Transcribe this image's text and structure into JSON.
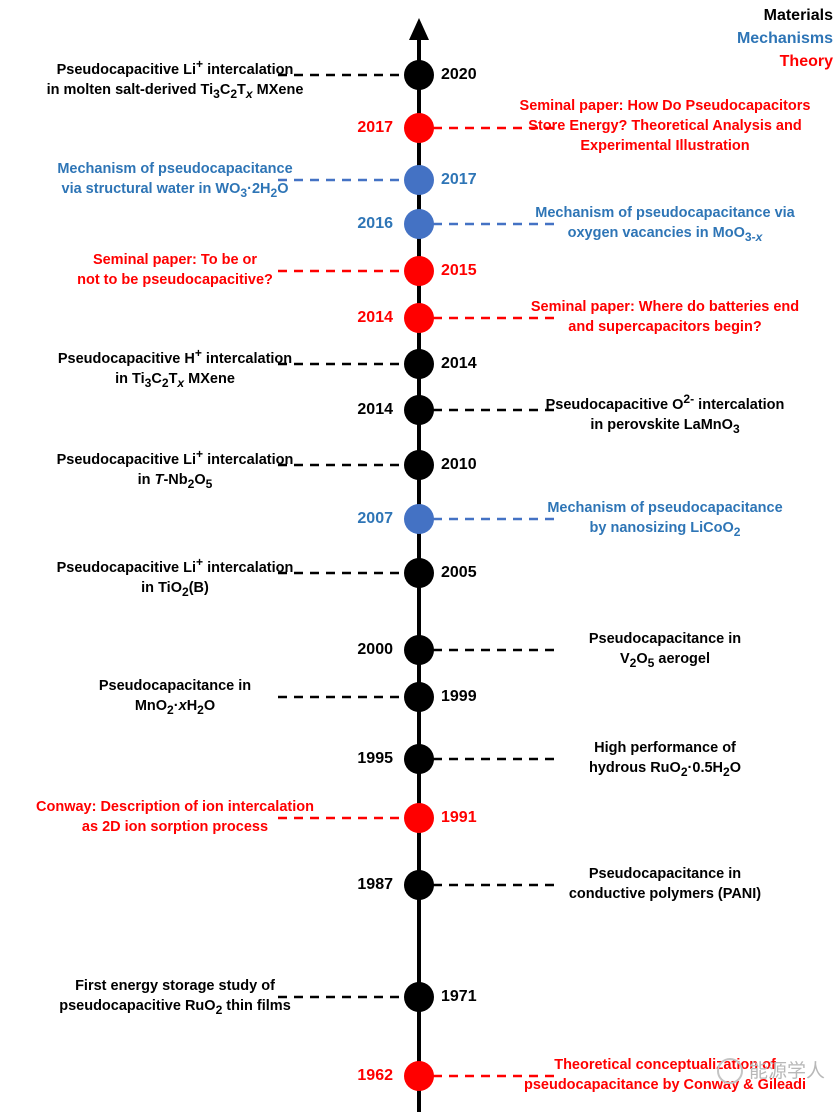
{
  "legend": [
    {
      "text": "Materials",
      "color": "#000000"
    },
    {
      "text": "Mechanisms",
      "color": "#2E75B6"
    },
    {
      "text": "Theory",
      "color": "#FF0000"
    }
  ],
  "colors": {
    "materials": "#000000",
    "mechanisms": "#2E75B6",
    "mechanisms_dot": "#4472C4",
    "theory": "#FF0000"
  },
  "events": [
    {
      "year": "2020",
      "category": "materials",
      "year_side": "right",
      "label_side": "left",
      "lines": [
        "Pseudocapacitive Li<sup>+</sup> intercalation",
        "in molten salt-derived Ti<sub>3</sub>C<sub>2</sub>T<i><sub>x</sub></i> MXene"
      ]
    },
    {
      "year": "2017",
      "category": "theory",
      "year_side": "left",
      "label_side": "right",
      "lines": [
        "Seminal paper: How Do Pseudocapacitors",
        "Store Energy? Theoretical Analysis and",
        "Experimental Illustration"
      ]
    },
    {
      "year": "2017",
      "category": "mechanisms",
      "year_side": "right",
      "label_side": "left",
      "lines": [
        "Mechanism of pseudocapacitance",
        "via structural water in WO<sub>3</sub>·2H<sub>2</sub>O"
      ]
    },
    {
      "year": "2016",
      "category": "mechanisms",
      "year_side": "left",
      "label_side": "right",
      "lines": [
        "Mechanism of pseudocapacitance via",
        "oxygen vacancies in MoO<sub>3-<i>x</i></sub>"
      ]
    },
    {
      "year": "2015",
      "category": "theory",
      "year_side": "right",
      "label_side": "left",
      "lines": [
        "Seminal paper: To be or",
        "not to be pseudocapacitive?"
      ]
    },
    {
      "year": "2014",
      "category": "theory",
      "year_side": "left",
      "label_side": "right",
      "lines": [
        "Seminal paper: Where do batteries end",
        "and supercapacitors begin?"
      ]
    },
    {
      "year": "2014",
      "category": "materials",
      "year_side": "right",
      "label_side": "left",
      "lines": [
        "Pseudocapacitive H<sup>+</sup> intercalation",
        "in Ti<sub>3</sub>C<sub>2</sub>T<i><sub>x</sub></i> MXene"
      ]
    },
    {
      "year": "2014",
      "category": "materials",
      "year_side": "left",
      "label_side": "right",
      "lines": [
        "Pseudocapacitive O<sup>2-</sup> intercalation",
        "in perovskite LaMnO<sub>3</sub>"
      ]
    },
    {
      "year": "2010",
      "category": "materials",
      "year_side": "right",
      "label_side": "left",
      "lines": [
        "Pseudocapacitive Li<sup>+</sup> intercalation",
        "in <i>T</i>-Nb<sub>2</sub>O<sub>5</sub>"
      ]
    },
    {
      "year": "2007",
      "category": "mechanisms",
      "year_side": "left",
      "label_side": "right",
      "lines": [
        "Mechanism of pseudocapacitance",
        "by nanosizing LiCoO<sub>2</sub>"
      ]
    },
    {
      "year": "2005",
      "category": "materials",
      "year_side": "right",
      "label_side": "left",
      "lines": [
        "Pseudocapacitive Li<sup>+</sup> intercalation",
        "in TiO<sub>2</sub>(B)"
      ]
    },
    {
      "year": "2000",
      "category": "materials",
      "year_side": "left",
      "label_side": "right",
      "lines": [
        "Pseudocapacitance in",
        "V<sub>2</sub>O<sub>5</sub> aerogel"
      ]
    },
    {
      "year": "1999",
      "category": "materials",
      "year_side": "right",
      "label_side": "left",
      "lines": [
        "Pseudocapacitance in",
        "MnO<sub>2</sub>·<i>x</i>H<sub>2</sub>O"
      ]
    },
    {
      "year": "1995",
      "category": "materials",
      "year_side": "left",
      "label_side": "right",
      "lines": [
        "High performance of",
        "hydrous RuO<sub>2</sub>·0.5H<sub>2</sub>O"
      ]
    },
    {
      "year": "1991",
      "category": "theory",
      "year_side": "right",
      "label_side": "left",
      "lines": [
        "Conway: Description of ion intercalation",
        "as 2D ion sorption process"
      ]
    },
    {
      "year": "1987",
      "category": "materials",
      "year_side": "left",
      "label_side": "right",
      "lines": [
        "Pseudocapacitance in",
        "conductive polymers (PANI)"
      ]
    },
    {
      "year": "1971",
      "category": "materials",
      "year_side": "right",
      "label_side": "left",
      "lines": [
        "First energy storage study of",
        "pseudocapacitive RuO<sub>2</sub> thin films"
      ]
    },
    {
      "year": "1962",
      "category": "theory",
      "year_side": "left",
      "label_side": "right",
      "lines": [
        "Theoretical conceptualization of",
        "pseudocapacitance by Conway & Gileadi"
      ]
    }
  ],
  "watermark": "能源学人"
}
